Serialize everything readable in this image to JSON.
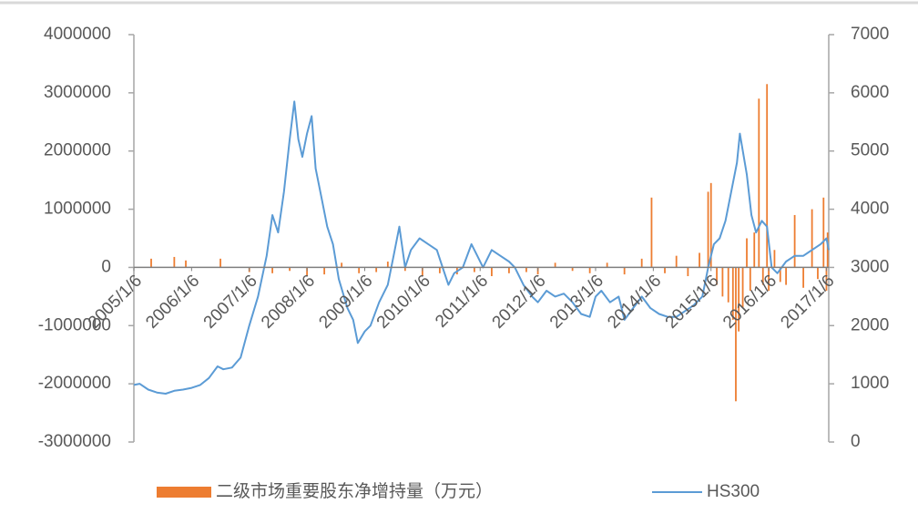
{
  "chart_data": {
    "type": "combo",
    "xlim": [
      2005.0,
      2017.04
    ],
    "xticks": [
      {
        "value": 2005,
        "label": "2005/1/6"
      },
      {
        "value": 2006,
        "label": "2006/1/6"
      },
      {
        "value": 2007,
        "label": "2007/1/6"
      },
      {
        "value": 2008,
        "label": "2008/1/6"
      },
      {
        "value": 2009,
        "label": "2009/1/6"
      },
      {
        "value": 2010,
        "label": "2010/1/6"
      },
      {
        "value": 2011,
        "label": "2011/1/6"
      },
      {
        "value": 2012,
        "label": "2012/1/6"
      },
      {
        "value": 2013,
        "label": "2013/1/6"
      },
      {
        "value": 2014,
        "label": "2014/1/6"
      },
      {
        "value": 2015,
        "label": "2015/1/6"
      },
      {
        "value": 2016,
        "label": "2016/1/6"
      },
      {
        "value": 2017,
        "label": "2017/1/6"
      }
    ],
    "ylim": [
      -3000000,
      4000000
    ],
    "yticks": [
      -3000000,
      -2000000,
      -1000000,
      0,
      1000000,
      2000000,
      3000000,
      4000000
    ],
    "y2lim": [
      0,
      7000
    ],
    "y2ticks": [
      0,
      1000,
      2000,
      3000,
      4000,
      5000,
      6000,
      7000
    ],
    "legend": "bottom",
    "series": [
      {
        "name": "二级市场重要股东净增持量（万元）",
        "type": "bar",
        "color": "#ed7d31",
        "x": [
          2005.3,
          2005.7,
          2005.9,
          2006.5,
          2007.0,
          2007.4,
          2007.7,
          2008.0,
          2008.3,
          2008.6,
          2008.9,
          2009.2,
          2009.4,
          2009.7,
          2010.0,
          2010.3,
          2010.6,
          2010.9,
          2011.2,
          2011.5,
          2011.8,
          2012.0,
          2012.3,
          2012.6,
          2012.9,
          2013.2,
          2013.5,
          2013.8,
          2013.97,
          2014.2,
          2014.4,
          2014.6,
          2014.8,
          2014.95,
          2015.0,
          2015.1,
          2015.2,
          2015.3,
          2015.38,
          2015.43,
          2015.48,
          2015.55,
          2015.62,
          2015.68,
          2015.75,
          2015.83,
          2015.9,
          2015.97,
          2016.0,
          2016.1,
          2016.2,
          2016.3,
          2016.45,
          2016.6,
          2016.75,
          2016.85,
          2016.95,
          2017.0,
          2017.02
        ],
        "values": [
          150000,
          180000,
          120000,
          150000,
          -80000,
          -100000,
          -60000,
          -150000,
          -120000,
          80000,
          -100000,
          -80000,
          100000,
          -60000,
          -150000,
          -100000,
          -120000,
          -80000,
          -150000,
          -100000,
          -80000,
          -120000,
          80000,
          -60000,
          -100000,
          80000,
          -120000,
          150000,
          1200000,
          -100000,
          200000,
          -150000,
          250000,
          1300000,
          1450000,
          -300000,
          -500000,
          -600000,
          -900000,
          -2300000,
          -1100000,
          -700000,
          500000,
          -400000,
          600000,
          2900000,
          -300000,
          3150000,
          -400000,
          300000,
          -250000,
          -300000,
          900000,
          -350000,
          1000000,
          -200000,
          1200000,
          -400000,
          600000
        ]
      },
      {
        "name": "HS300",
        "type": "line",
        "color": "#5b9bd5",
        "axis": "y2",
        "x": [
          2005.0,
          2005.1,
          2005.25,
          2005.4,
          2005.55,
          2005.7,
          2005.85,
          2006.0,
          2006.15,
          2006.3,
          2006.45,
          2006.55,
          2006.7,
          2006.85,
          2007.0,
          2007.15,
          2007.3,
          2007.4,
          2007.5,
          2007.6,
          2007.7,
          2007.78,
          2007.85,
          2007.92,
          2008.0,
          2008.08,
          2008.15,
          2008.25,
          2008.35,
          2008.45,
          2008.55,
          2008.7,
          2008.8,
          2008.88,
          2009.0,
          2009.1,
          2009.25,
          2009.4,
          2009.5,
          2009.6,
          2009.7,
          2009.8,
          2009.95,
          2010.1,
          2010.25,
          2010.35,
          2010.45,
          2010.55,
          2010.7,
          2010.85,
          2010.95,
          2011.05,
          2011.2,
          2011.35,
          2011.5,
          2011.6,
          2011.75,
          2011.9,
          2012.0,
          2012.15,
          2012.3,
          2012.45,
          2012.6,
          2012.75,
          2012.9,
          2013.0,
          2013.1,
          2013.25,
          2013.4,
          2013.5,
          2013.65,
          2013.8,
          2013.95,
          2014.1,
          2014.25,
          2014.4,
          2014.55,
          2014.7,
          2014.85,
          2014.95,
          2015.05,
          2015.15,
          2015.25,
          2015.35,
          2015.45,
          2015.5,
          2015.62,
          2015.7,
          2015.78,
          2015.88,
          2015.97,
          2016.05,
          2016.15,
          2016.3,
          2016.45,
          2016.6,
          2016.75,
          2016.9,
          2017.0,
          2017.04
        ],
        "values": [
          980,
          1000,
          900,
          850,
          830,
          880,
          900,
          930,
          980,
          1100,
          1300,
          1250,
          1280,
          1450,
          2000,
          2500,
          3200,
          3900,
          3600,
          4300,
          5200,
          5850,
          5200,
          4900,
          5300,
          5600,
          4700,
          4200,
          3700,
          3400,
          2800,
          2300,
          2100,
          1700,
          1900,
          2000,
          2400,
          2700,
          3200,
          3700,
          3000,
          3300,
          3500,
          3400,
          3300,
          3000,
          2700,
          2900,
          3000,
          3400,
          3200,
          3000,
          3300,
          3200,
          3100,
          3000,
          2700,
          2500,
          2400,
          2600,
          2500,
          2550,
          2400,
          2200,
          2150,
          2500,
          2600,
          2400,
          2500,
          2100,
          2300,
          2500,
          2300,
          2200,
          2150,
          2150,
          2250,
          2350,
          2500,
          3000,
          3400,
          3500,
          3800,
          4300,
          4800,
          5300,
          4600,
          3900,
          3600,
          3800,
          3700,
          3000,
          2900,
          3100,
          3200,
          3200,
          3300,
          3400,
          3500,
          3300
        ]
      }
    ]
  }
}
